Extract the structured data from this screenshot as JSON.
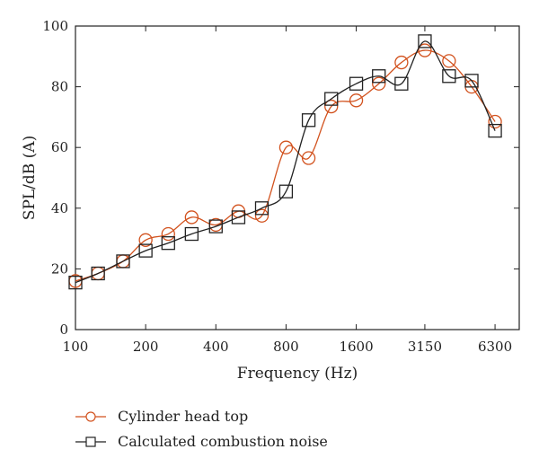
{
  "chart_data": {
    "type": "line",
    "xlabel": "Frequency (Hz)",
    "ylabel": "SPL/dB (A)",
    "xscale": "log",
    "xlim": [
      100,
      8000
    ],
    "ylim": [
      0,
      100
    ],
    "xticks": [
      {
        "value": 100,
        "label": "100"
      },
      {
        "value": 200,
        "label": "200"
      },
      {
        "value": 400,
        "label": "400"
      },
      {
        "value": 800,
        "label": "800"
      },
      {
        "value": 1600,
        "label": "1600"
      },
      {
        "value": 3150,
        "label": "3150"
      },
      {
        "value": 6300,
        "label": "6300"
      }
    ],
    "yticks": [
      {
        "value": 0,
        "label": "0"
      },
      {
        "value": 20,
        "label": "20"
      },
      {
        "value": 40,
        "label": "40"
      },
      {
        "value": 60,
        "label": "60"
      },
      {
        "value": 80,
        "label": "80"
      },
      {
        "value": 100,
        "label": "100"
      }
    ],
    "grid": false,
    "legend_position": "bottom-left",
    "series": [
      {
        "name": "Cylinder head top",
        "color": "#d2521e",
        "marker": "circle",
        "x": [
          100,
          125,
          160,
          200,
          250,
          315,
          400,
          500,
          630,
          800,
          1000,
          1250,
          1600,
          2000,
          2500,
          3150,
          4000,
          5000,
          6300
        ],
        "y": [
          16,
          18.5,
          22.5,
          29.5,
          31.5,
          37,
          34.5,
          39,
          37.5,
          60,
          56.5,
          73.5,
          75.5,
          81,
          88,
          92,
          88.5,
          80,
          68.5
        ]
      },
      {
        "name": "Calculated combustion noise",
        "color": "#222222",
        "marker": "square",
        "x": [
          100,
          125,
          160,
          200,
          250,
          315,
          400,
          500,
          630,
          800,
          1000,
          1250,
          1600,
          2000,
          2500,
          3150,
          4000,
          5000,
          6300
        ],
        "y": [
          15.5,
          18.5,
          22.5,
          26,
          28.5,
          31.5,
          34,
          37,
          40,
          45.5,
          69,
          76,
          81,
          83.5,
          81,
          95,
          83.5,
          82,
          65.5
        ]
      }
    ]
  }
}
